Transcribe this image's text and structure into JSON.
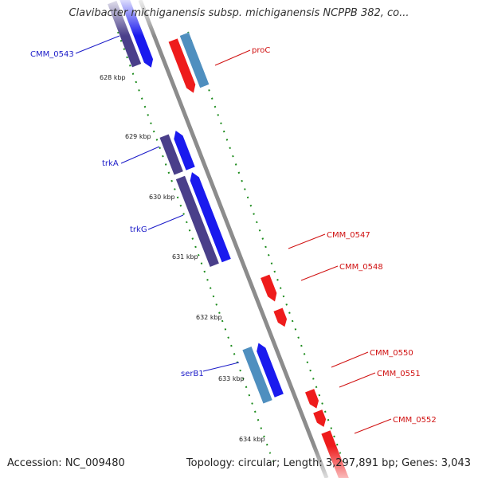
{
  "title": "Clavibacter michiganensis subsp. michiganensis NCPPB 382, co...",
  "accession": "Accession: NC_009480",
  "stats": "Topology: circular; Length: 3,297,891 bp; Genes: 3,043",
  "colors": {
    "backbone": "#8c8c8c",
    "reverse_dark": "#4a3f8a",
    "reverse_blue": "#1a1aee",
    "forward_red": "#ee1c1c",
    "steel_blue": "#4f8fbf",
    "tick_green": "#1a8a1a",
    "label_blue": "#1a1ac8",
    "label_red": "#d01010"
  },
  "kbp_labels": [
    "628 kbp",
    "629 kbp",
    "630 kbp",
    "631 kbp",
    "632 kbp",
    "633 kbp",
    "634 kbp"
  ],
  "left_labels": [
    "CMM_0543",
    "trkA",
    "trkG",
    "serB1"
  ],
  "right_labels": [
    "proC",
    "CMM_0547",
    "CMM_0548",
    "CMM_0550",
    "CMM_0551",
    "CMM_0552"
  ]
}
